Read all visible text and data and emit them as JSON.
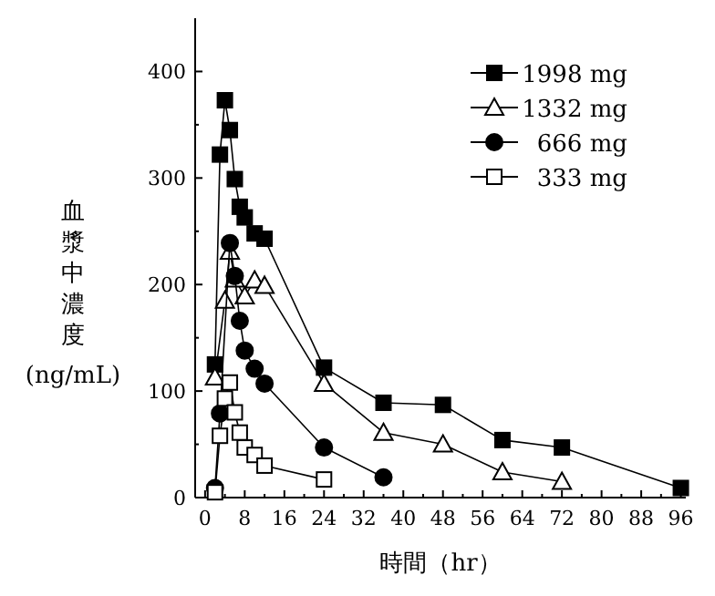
{
  "chart_data": {
    "type": "line",
    "xlabel": "時間（hr）",
    "ylabel": "血漿中濃度 (ng/mL)",
    "xlim": [
      -2,
      97
    ],
    "ylim": [
      0,
      450
    ],
    "xticks": [
      0,
      8,
      16,
      24,
      32,
      40,
      48,
      56,
      64,
      72,
      80,
      88,
      96
    ],
    "yticks": [
      0,
      100,
      200,
      300,
      400
    ],
    "grid": false,
    "legend": "top right",
    "line_style": "solid",
    "series": [
      {
        "name": "1998 mg",
        "color": "#000000",
        "marker": "square",
        "x": [
          2,
          3,
          4,
          5,
          6,
          7,
          8,
          10,
          12,
          24,
          36,
          48,
          60,
          72,
          96
        ],
        "values": [
          125,
          322,
          373,
          345,
          299,
          273,
          263,
          248,
          243,
          122,
          89,
          87,
          54,
          47,
          9
        ]
      },
      {
        "name": "1332 mg",
        "color": "#000000",
        "marker": "triangle",
        "x": [
          2,
          4,
          5,
          6,
          8,
          10,
          12,
          24,
          36,
          48,
          60,
          72
        ],
        "values": [
          113,
          185,
          231,
          205,
          189,
          204,
          199,
          107,
          61,
          50,
          24,
          15
        ]
      },
      {
        "name": "666 mg",
        "color": "#000000",
        "marker": "circle",
        "x": [
          2,
          3,
          5,
          6,
          7,
          8,
          10,
          12,
          24,
          36
        ],
        "values": [
          9,
          79,
          239,
          208,
          166,
          138,
          121,
          107,
          47,
          19
        ]
      },
      {
        "name": "333 mg",
        "color": "#000000",
        "marker": "square",
        "x": [
          2,
          3,
          4,
          5,
          6,
          7,
          8,
          10,
          12,
          24
        ],
        "values": [
          5,
          58,
          93,
          108,
          80,
          61,
          47,
          40,
          30,
          17
        ]
      }
    ]
  }
}
